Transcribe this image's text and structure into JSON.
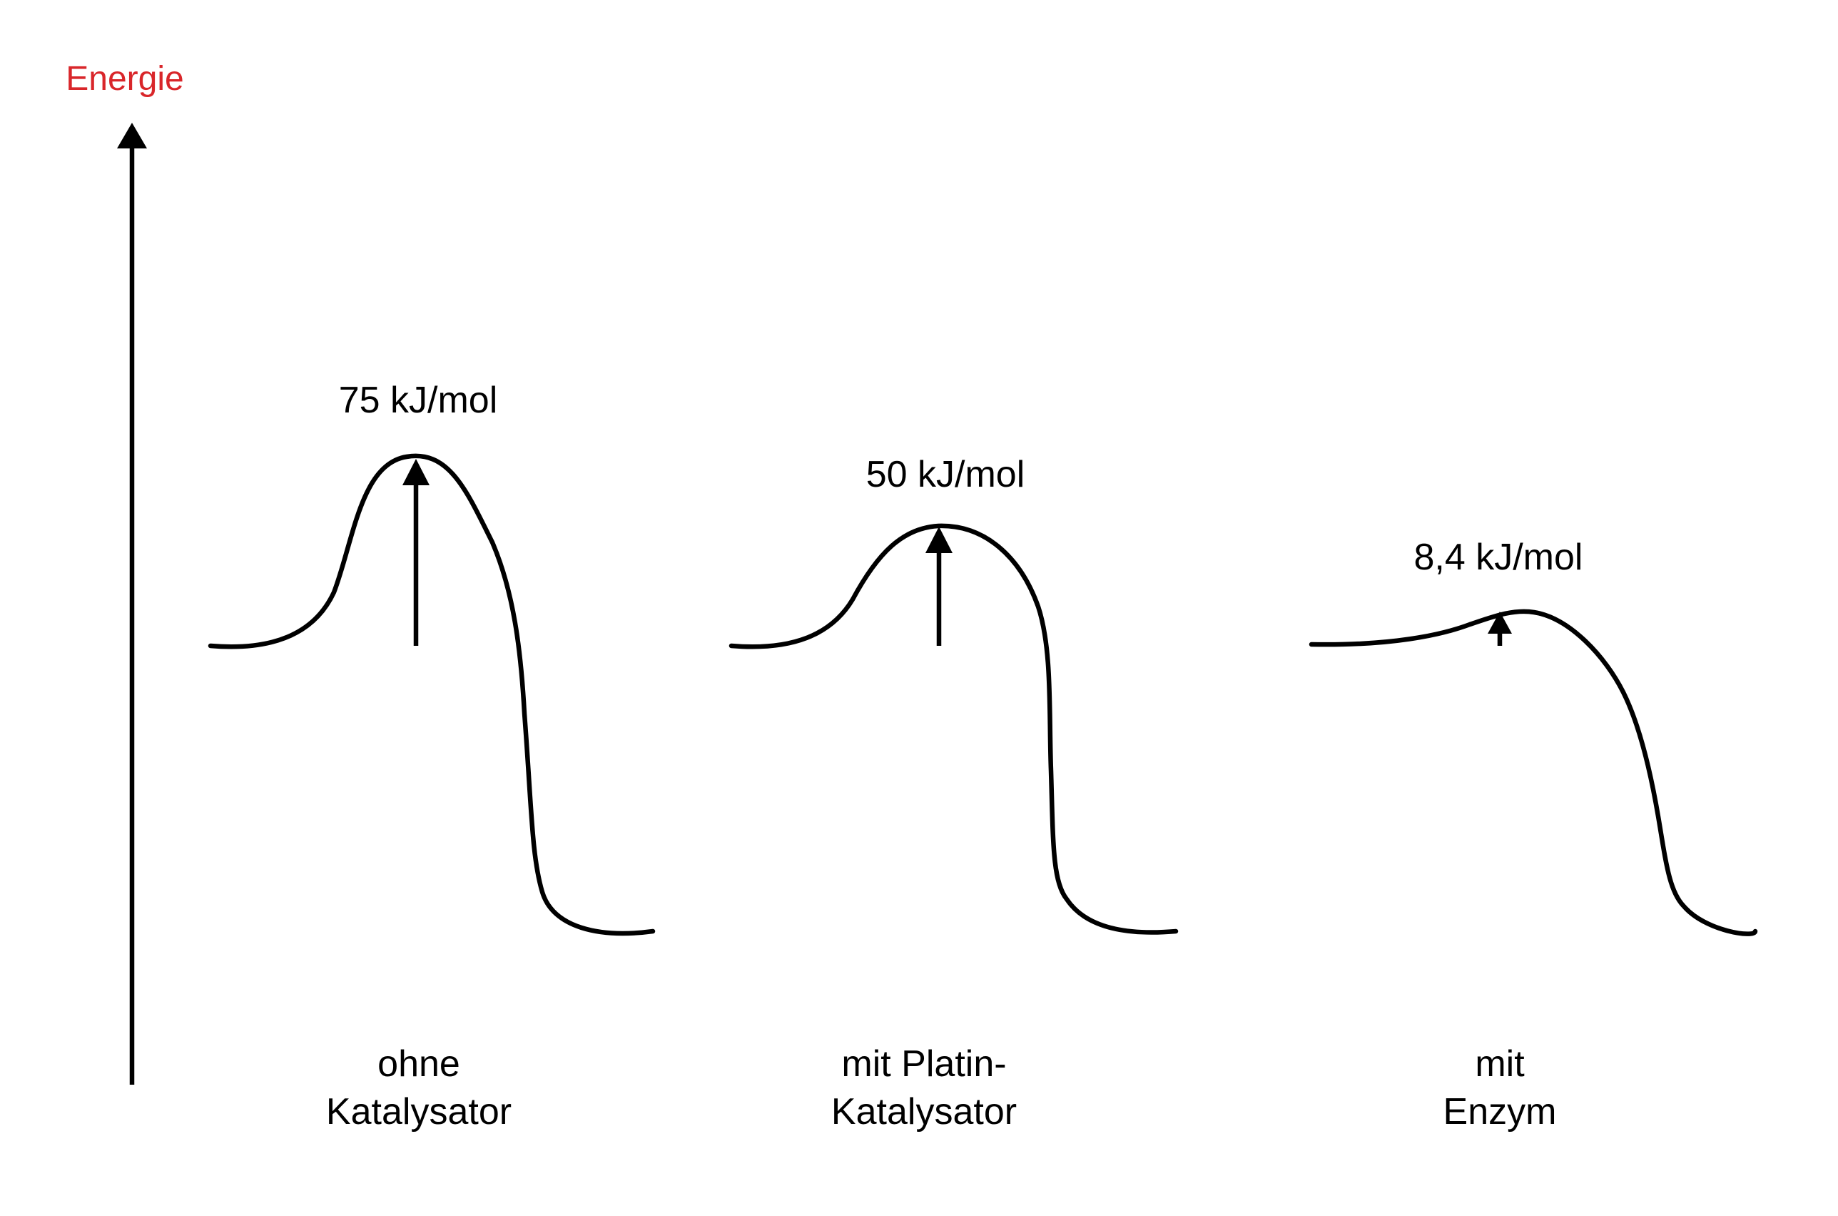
{
  "axis": {
    "label": "Energie",
    "label_color": "#d9262a"
  },
  "cases": [
    {
      "value_label": "75 kJ/mol",
      "name_line1": "ohne",
      "name_line2": "Katalysator"
    },
    {
      "value_label": "50 kJ/mol",
      "name_line1": "mit Platin-",
      "name_line2": "Katalysator"
    },
    {
      "value_label": "8,4 kJ/mol",
      "name_line1": "mit",
      "name_line2": "Enzym"
    }
  ],
  "colors": {
    "stroke": "#000000",
    "background": "#ffffff"
  }
}
